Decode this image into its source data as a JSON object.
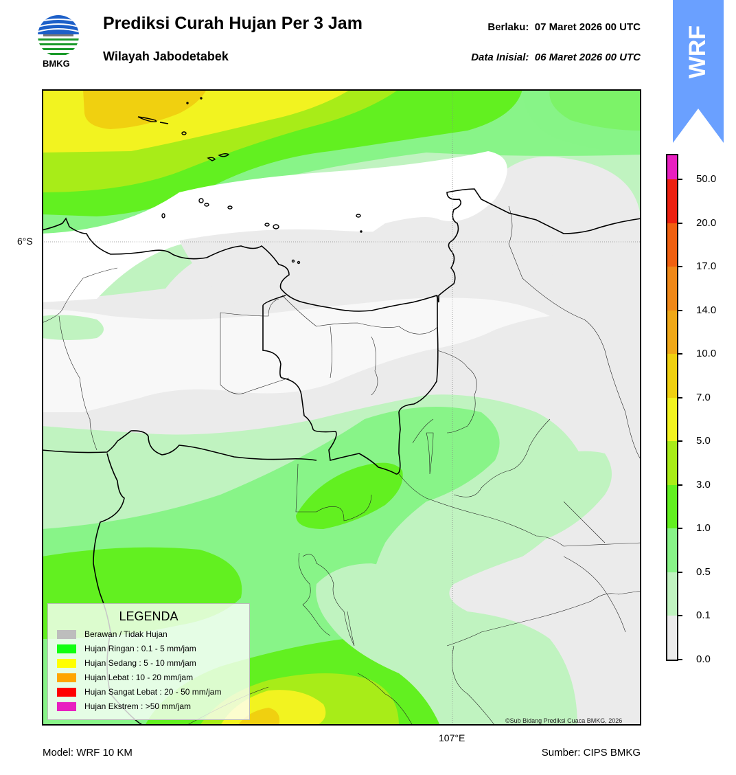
{
  "header": {
    "title": "Prediksi Curah Hujan Per 3 Jam",
    "subtitle": "Wilayah Jabodetabek",
    "valid_label": "Berlaku:",
    "valid_value": "07 Maret 2026 00 UTC",
    "init_label": "Data Inisial:",
    "init_value": "06 Maret 2026 00 UTC",
    "logo_text": "BMKG"
  },
  "map": {
    "lat_label": "6°S",
    "lon_label": "107°E",
    "copyright": "©Sub Bidang Prediksi Cuaca BMKG, 2026"
  },
  "legend": {
    "title": "LEGENDA",
    "items": [
      {
        "label": "Berawan / Tidak Hujan",
        "color": "#bdbdbd"
      },
      {
        "label": "Hujan Ringan : 0.1 - 5 mm/jam",
        "color": "#10ff10"
      },
      {
        "label": "Hujan Sedang : 5 - 10 mm/jam",
        "color": "#ffff00"
      },
      {
        "label": "Hujan Lebat : 10 - 20 mm/jam",
        "color": "#ffa500"
      },
      {
        "label": "Hujan Sangat Lebat : 20 - 50 mm/jam",
        "color": "#ff0000"
      },
      {
        "label": "Hujan Ekstrem : >50 mm/jam",
        "color": "#e820c0"
      }
    ]
  },
  "colorbar": {
    "ticks": [
      "0.0",
      "0.1",
      "0.5",
      "1.0",
      "3.0",
      "5.0",
      "7.0",
      "10.0",
      "14.0",
      "17.0",
      "20.0",
      "50.0"
    ],
    "colors": [
      "#ebebeb",
      "#c0f3c0",
      "#88f488",
      "#62f020",
      "#a8ec18",
      "#f2f320",
      "#f0d010",
      "#f0a818",
      "#f08818",
      "#f06010",
      "#ec2010",
      "#e820c0"
    ]
  },
  "badge": {
    "text": "WRF",
    "color": "#6aa0ff"
  },
  "footer": {
    "model": "Model: WRF 10 KM",
    "source": "Sumber: CIPS BMKG"
  }
}
